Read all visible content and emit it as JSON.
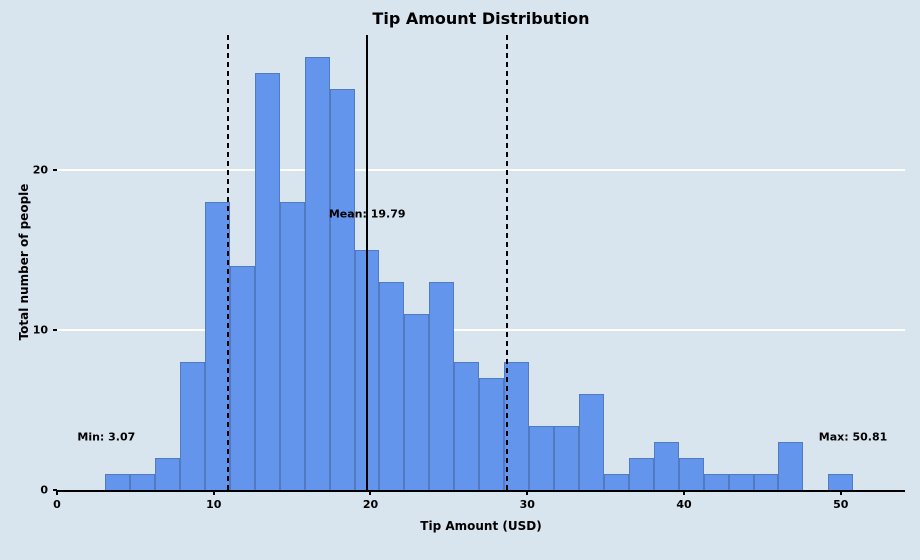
{
  "chart_data": {
    "type": "bar",
    "title": "Tip Amount Distribution",
    "xlabel": "Tip Amount (USD)",
    "ylabel": "Total number of people",
    "bin_start": 3.07,
    "bin_width": 1.591,
    "values": [
      1,
      1,
      2,
      8,
      18,
      14,
      26,
      18,
      27,
      25,
      15,
      13,
      11,
      13,
      8,
      7,
      8,
      4,
      4,
      6,
      1,
      2,
      3,
      2,
      1,
      1,
      1,
      3,
      0,
      1
    ],
    "total_count": 244,
    "xlim": [
      0,
      54.1
    ],
    "ylim": [
      0,
      28.4
    ],
    "x_ticks": [
      0,
      10,
      20,
      30,
      40,
      50
    ],
    "y_ticks": [
      0,
      10,
      20
    ],
    "grid": "horizontal",
    "legend": "none",
    "mean": 19.79,
    "dashed_lines": [
      10.89,
      28.69
    ],
    "stat_min": 3.07,
    "stat_max": 50.81,
    "annotations": [
      {
        "name": "min-label",
        "text": "Min: 3.07",
        "x": 1.3,
        "y": 3.3,
        "align": "left"
      },
      {
        "name": "mean-label",
        "text": "Mean: 19.79",
        "x": 19.79,
        "y": 17.2,
        "align": "center"
      },
      {
        "name": "max-label",
        "text": "Max: 50.81",
        "x": 48.6,
        "y": 3.3,
        "align": "left"
      }
    ],
    "colors": {
      "background": "#d8e4ee",
      "bar": "#6495ed",
      "bar_edge": "rgba(0,0,0,0.18)",
      "grid": "#ffffff",
      "line": "#000000"
    }
  }
}
